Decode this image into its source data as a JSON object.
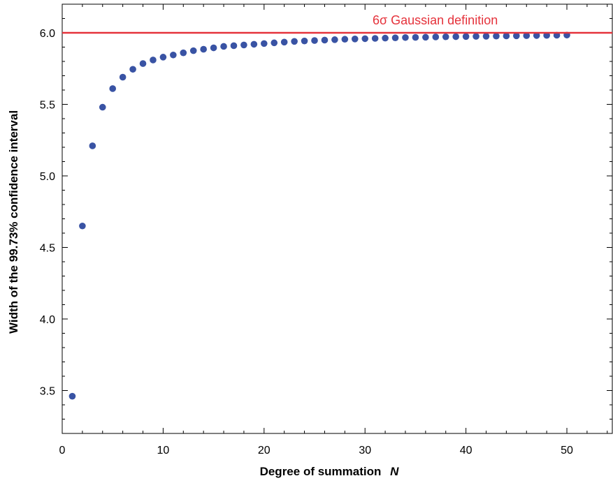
{
  "chart_data": {
    "type": "scatter",
    "title": "",
    "xlabel": "Degree of summation",
    "xlabel_var": "N",
    "ylabel": "Width of the 99.73% confidence interval",
    "xlim": [
      0,
      54.5
    ],
    "ylim": [
      3.2,
      6.2
    ],
    "xticks": [
      0,
      10,
      20,
      30,
      40,
      50
    ],
    "xtick_labels": [
      "0",
      "10",
      "20",
      "30",
      "40",
      "50"
    ],
    "yticks": [
      3.5,
      4.0,
      4.5,
      5.0,
      5.5,
      6.0
    ],
    "ytick_labels": [
      "3.5",
      "4.0",
      "4.5",
      "5.0",
      "5.5",
      "6.0"
    ],
    "grid": false,
    "series": [
      {
        "x": [
          1,
          2,
          3,
          4,
          5,
          6,
          7,
          8,
          9,
          10,
          11,
          12,
          13,
          14,
          15,
          16,
          17,
          18,
          19,
          20,
          21,
          22,
          23,
          24,
          25,
          26,
          27,
          28,
          29,
          30,
          31,
          32,
          33,
          34,
          35,
          36,
          37,
          38,
          39,
          40,
          41,
          42,
          43,
          44,
          45,
          46,
          47,
          48,
          49,
          50
        ],
        "y": [
          3.46,
          4.65,
          5.21,
          5.48,
          5.61,
          5.69,
          5.745,
          5.785,
          5.81,
          5.83,
          5.845,
          5.86,
          5.875,
          5.885,
          5.895,
          5.905,
          5.91,
          5.915,
          5.92,
          5.925,
          5.93,
          5.935,
          5.94,
          5.943,
          5.946,
          5.949,
          5.952,
          5.955,
          5.957,
          5.959,
          5.961,
          5.963,
          5.965,
          5.967,
          5.968,
          5.969,
          5.971,
          5.972,
          5.973,
          5.974,
          5.975,
          5.976,
          5.977,
          5.978,
          5.979,
          5.98,
          5.981,
          5.982,
          5.983,
          5.984
        ],
        "color": "#3953a4"
      }
    ],
    "reference_line": {
      "y": 6.0,
      "label": "6σ Gaussian definition",
      "color": "#e5323b"
    }
  }
}
